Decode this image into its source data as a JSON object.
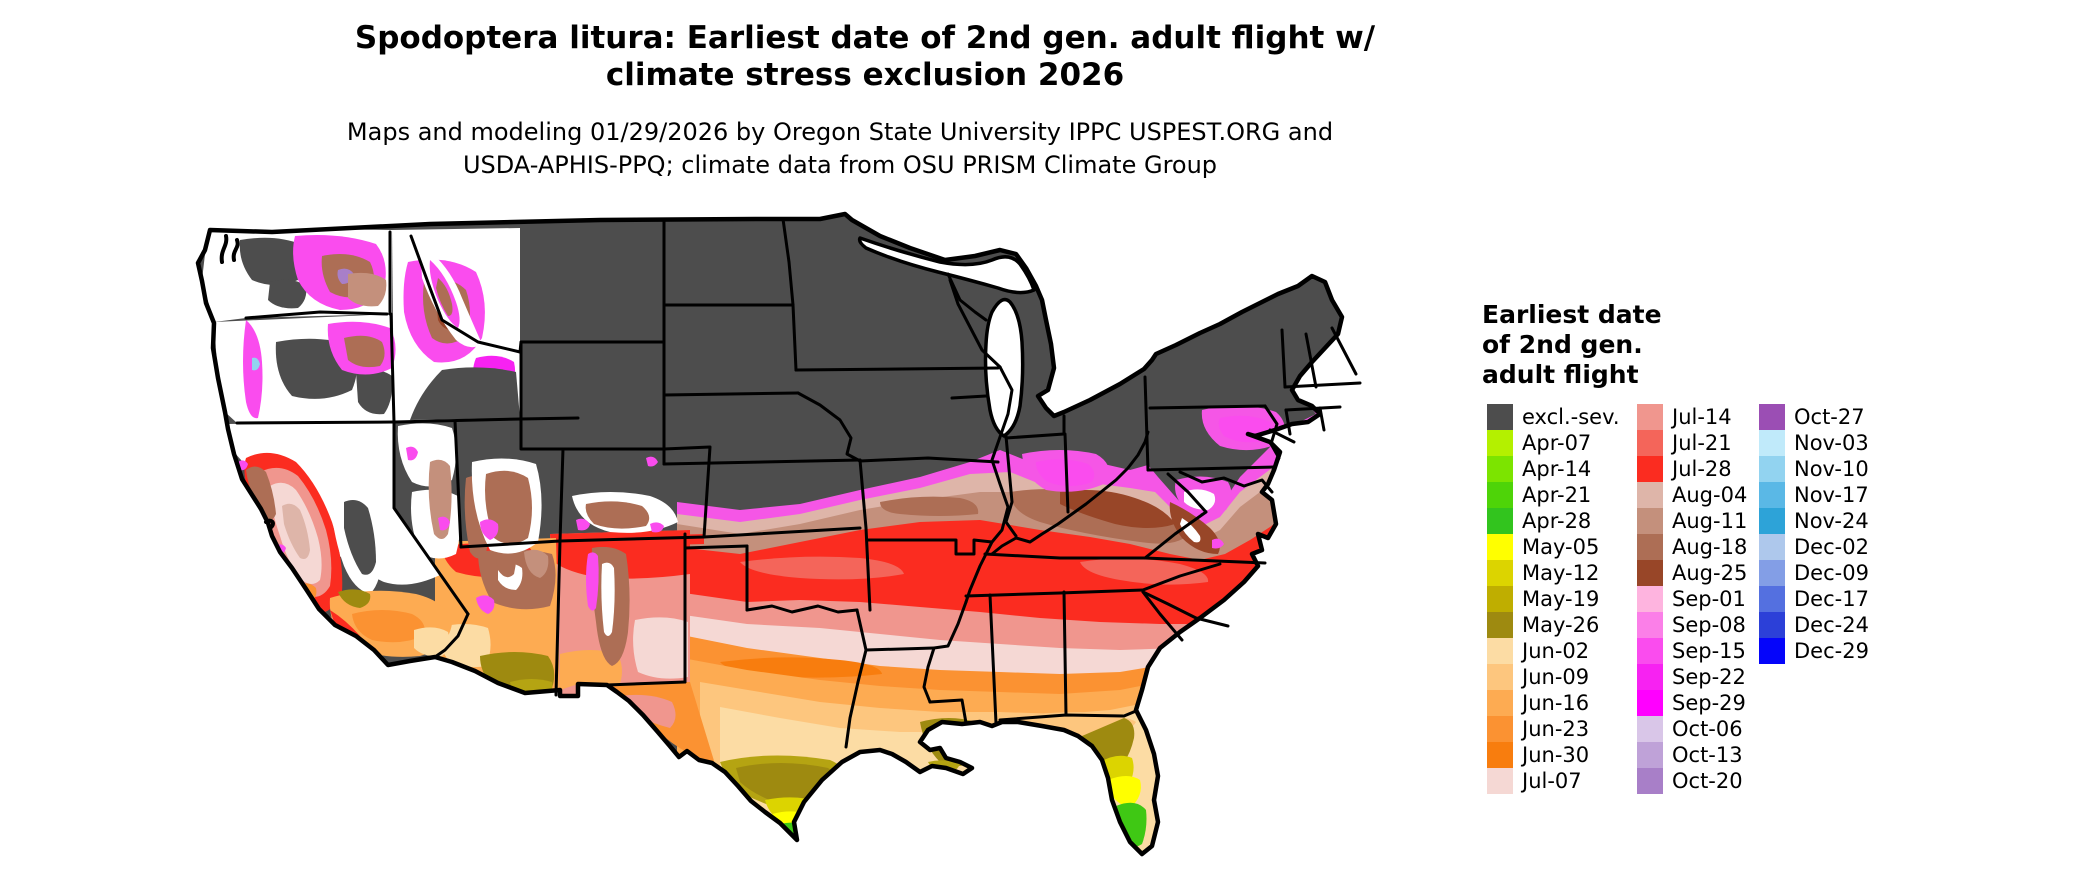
{
  "title": {
    "line1": "Spodoptera litura: Earliest date of 2nd gen. adult flight w/",
    "line2": "climate stress exclusion 2026"
  },
  "subtitle": {
    "line1": "Maps and modeling 01/29/2026 by Oregon State University IPPC USPEST.ORG and",
    "line2": "USDA-APHIS-PPQ; climate data from OSU PRISM Climate Group"
  },
  "legend": {
    "title": "Earliest date\nof 2nd gen.\nadult flight",
    "columns": [
      [
        {
          "label": "excl.-sev.",
          "color": "#4d4d4d"
        },
        {
          "label": "Apr-07",
          "color": "#b4f000"
        },
        {
          "label": "Apr-14",
          "color": "#7ce400"
        },
        {
          "label": "Apr-21",
          "color": "#4ed408"
        },
        {
          "label": "Apr-28",
          "color": "#32c41e"
        },
        {
          "label": "May-05",
          "color": "#ffff00"
        },
        {
          "label": "May-12",
          "color": "#dcd400"
        },
        {
          "label": "May-19",
          "color": "#bfae00"
        },
        {
          "label": "May-26",
          "color": "#9e8a10"
        },
        {
          "label": "Jun-02",
          "color": "#fcdca4"
        },
        {
          "label": "Jun-09",
          "color": "#fdc67e"
        },
        {
          "label": "Jun-16",
          "color": "#fdab52"
        },
        {
          "label": "Jun-23",
          "color": "#fb9232"
        },
        {
          "label": "Jun-30",
          "color": "#f87d0e"
        },
        {
          "label": "Jul-07",
          "color": "#f5d8d4"
        }
      ],
      [
        {
          "label": "Jul-14",
          "color": "#f0968e"
        },
        {
          "label": "Jul-21",
          "color": "#f4655a"
        },
        {
          "label": "Jul-28",
          "color": "#fb2c20"
        },
        {
          "label": "Aug-04",
          "color": "#deb5a9"
        },
        {
          "label": "Aug-11",
          "color": "#c4907c"
        },
        {
          "label": "Aug-18",
          "color": "#ad6e55"
        },
        {
          "label": "Aug-25",
          "color": "#984628"
        },
        {
          "label": "Sep-01",
          "color": "#feb4df"
        },
        {
          "label": "Sep-08",
          "color": "#fb7fe8"
        },
        {
          "label": "Sep-15",
          "color": "#fa4cee"
        },
        {
          "label": "Sep-22",
          "color": "#f722f2"
        },
        {
          "label": "Sep-29",
          "color": "#ff00ff"
        },
        {
          "label": "Oct-06",
          "color": "#d9c6e8"
        },
        {
          "label": "Oct-13",
          "color": "#bfa2d8"
        },
        {
          "label": "Oct-20",
          "color": "#a87fc8"
        }
      ],
      [
        {
          "label": "Oct-27",
          "color": "#9b4eb4"
        },
        {
          "label": "Nov-03",
          "color": "#c0eafa"
        },
        {
          "label": "Nov-10",
          "color": "#92d3f0"
        },
        {
          "label": "Nov-17",
          "color": "#5ab8e6"
        },
        {
          "label": "Nov-24",
          "color": "#2da3d8"
        },
        {
          "label": "Dec-02",
          "color": "#aec8ec"
        },
        {
          "label": "Dec-09",
          "color": "#839ee6"
        },
        {
          "label": "Dec-17",
          "color": "#5470e0"
        },
        {
          "label": "Dec-24",
          "color": "#2c40d8"
        },
        {
          "label": "Dec-29",
          "color": "#0505fa"
        }
      ]
    ]
  },
  "map": {
    "background": "#ffffff",
    "excluded_color": "#4d4d4d",
    "border_color": "#000000"
  }
}
